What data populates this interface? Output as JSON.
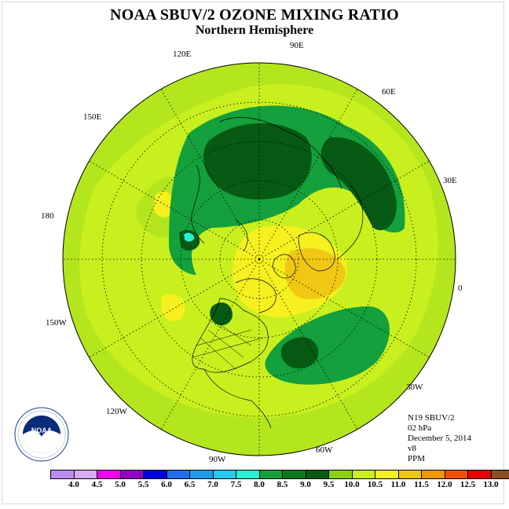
{
  "title": "NOAA SBUV/2 OZONE MIXING RATIO",
  "subtitle": "Northern Hemisphere",
  "longitude_labels": {
    "lon_90e": "90E",
    "lon_60e": "60E",
    "lon_30e": "30E",
    "lon_0": "0",
    "lon_30w": "30W",
    "lon_60w": "60W",
    "lon_90w": "90W",
    "lon_120w": "120W",
    "lon_150w": "150W",
    "lon_180": "180",
    "lon_150e": "150E",
    "lon_120e": "120E"
  },
  "info": {
    "satellite": "N19 SBUV/2",
    "pressure": "02 hPa",
    "date": "December 5, 2014",
    "version": "v8",
    "units": "PPM"
  },
  "logo_text": "NOAA",
  "colorbar": {
    "labels": [
      "4.0",
      "4.5",
      "5.0",
      "5.5",
      "6.0",
      "6.5",
      "7.0",
      "7.5",
      "8.0",
      "8.5",
      "9.0",
      "9.5",
      "10.0",
      "10.5",
      "11.0",
      "11.5",
      "12.0",
      "12.5",
      "13.0"
    ],
    "colors": [
      "#b98cf0",
      "#d7aaf5",
      "#f000f0",
      "#9600c8",
      "#0000e6",
      "#1e6ef0",
      "#1e9be6",
      "#28c8f0",
      "#28f0d2",
      "#14a03c",
      "#0a781e",
      "#065a14",
      "#8cd214",
      "#c8f01e",
      "#f5f01e",
      "#f0c814",
      "#f09600",
      "#f05000",
      "#e60000",
      "#8c5028"
    ]
  },
  "colors": {
    "background_field": "#b4e61e",
    "mid_field": "#c8f01e",
    "high_field": "#f5f01e",
    "max_field": "#f0c814",
    "low_field_1": "#14a03c",
    "low_field_2": "#065a14",
    "min_field": "#28f0d2"
  }
}
